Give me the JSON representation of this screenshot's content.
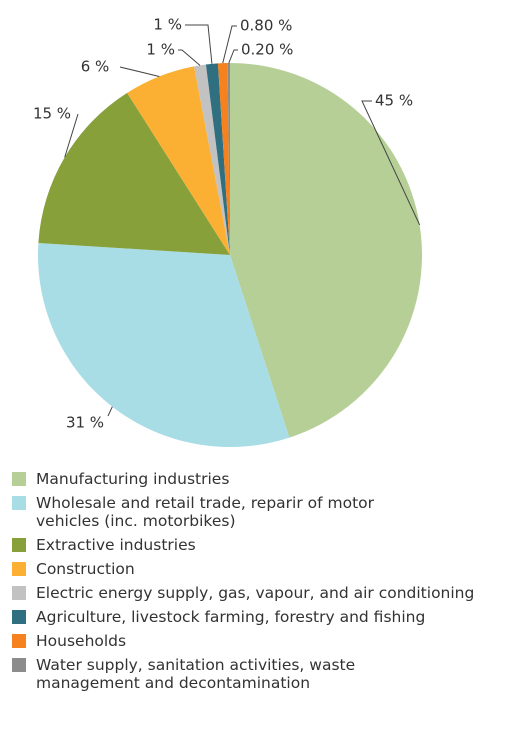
{
  "chart_data": {
    "type": "pie",
    "categories": [
      "Manufacturing industries",
      "Wholesale and retail trade, reparir of motor vehicles (inc. motorbikes)",
      "Extractive industries",
      "Construction",
      "Electric energy supply, gas, vapour, and air conditioning",
      "Agriculture, livestock farming, forestry and fishing",
      "Households",
      "Water supply, sanitation activities, waste management and decontamination"
    ],
    "values": [
      45,
      31,
      15,
      6,
      1,
      1,
      0.8,
      0.2
    ],
    "value_labels": [
      "45 %",
      "31 %",
      "15 %",
      "6 %",
      "1 %",
      "1 %",
      "0.80 %",
      "0.20 %"
    ],
    "colors": [
      "#b5cf96",
      "#a8dde6",
      "#87a03a",
      "#fbb034",
      "#c2c2c2",
      "#2f6f80",
      "#f5821f",
      "#8c8c8c"
    ],
    "legend": "bottom"
  }
}
